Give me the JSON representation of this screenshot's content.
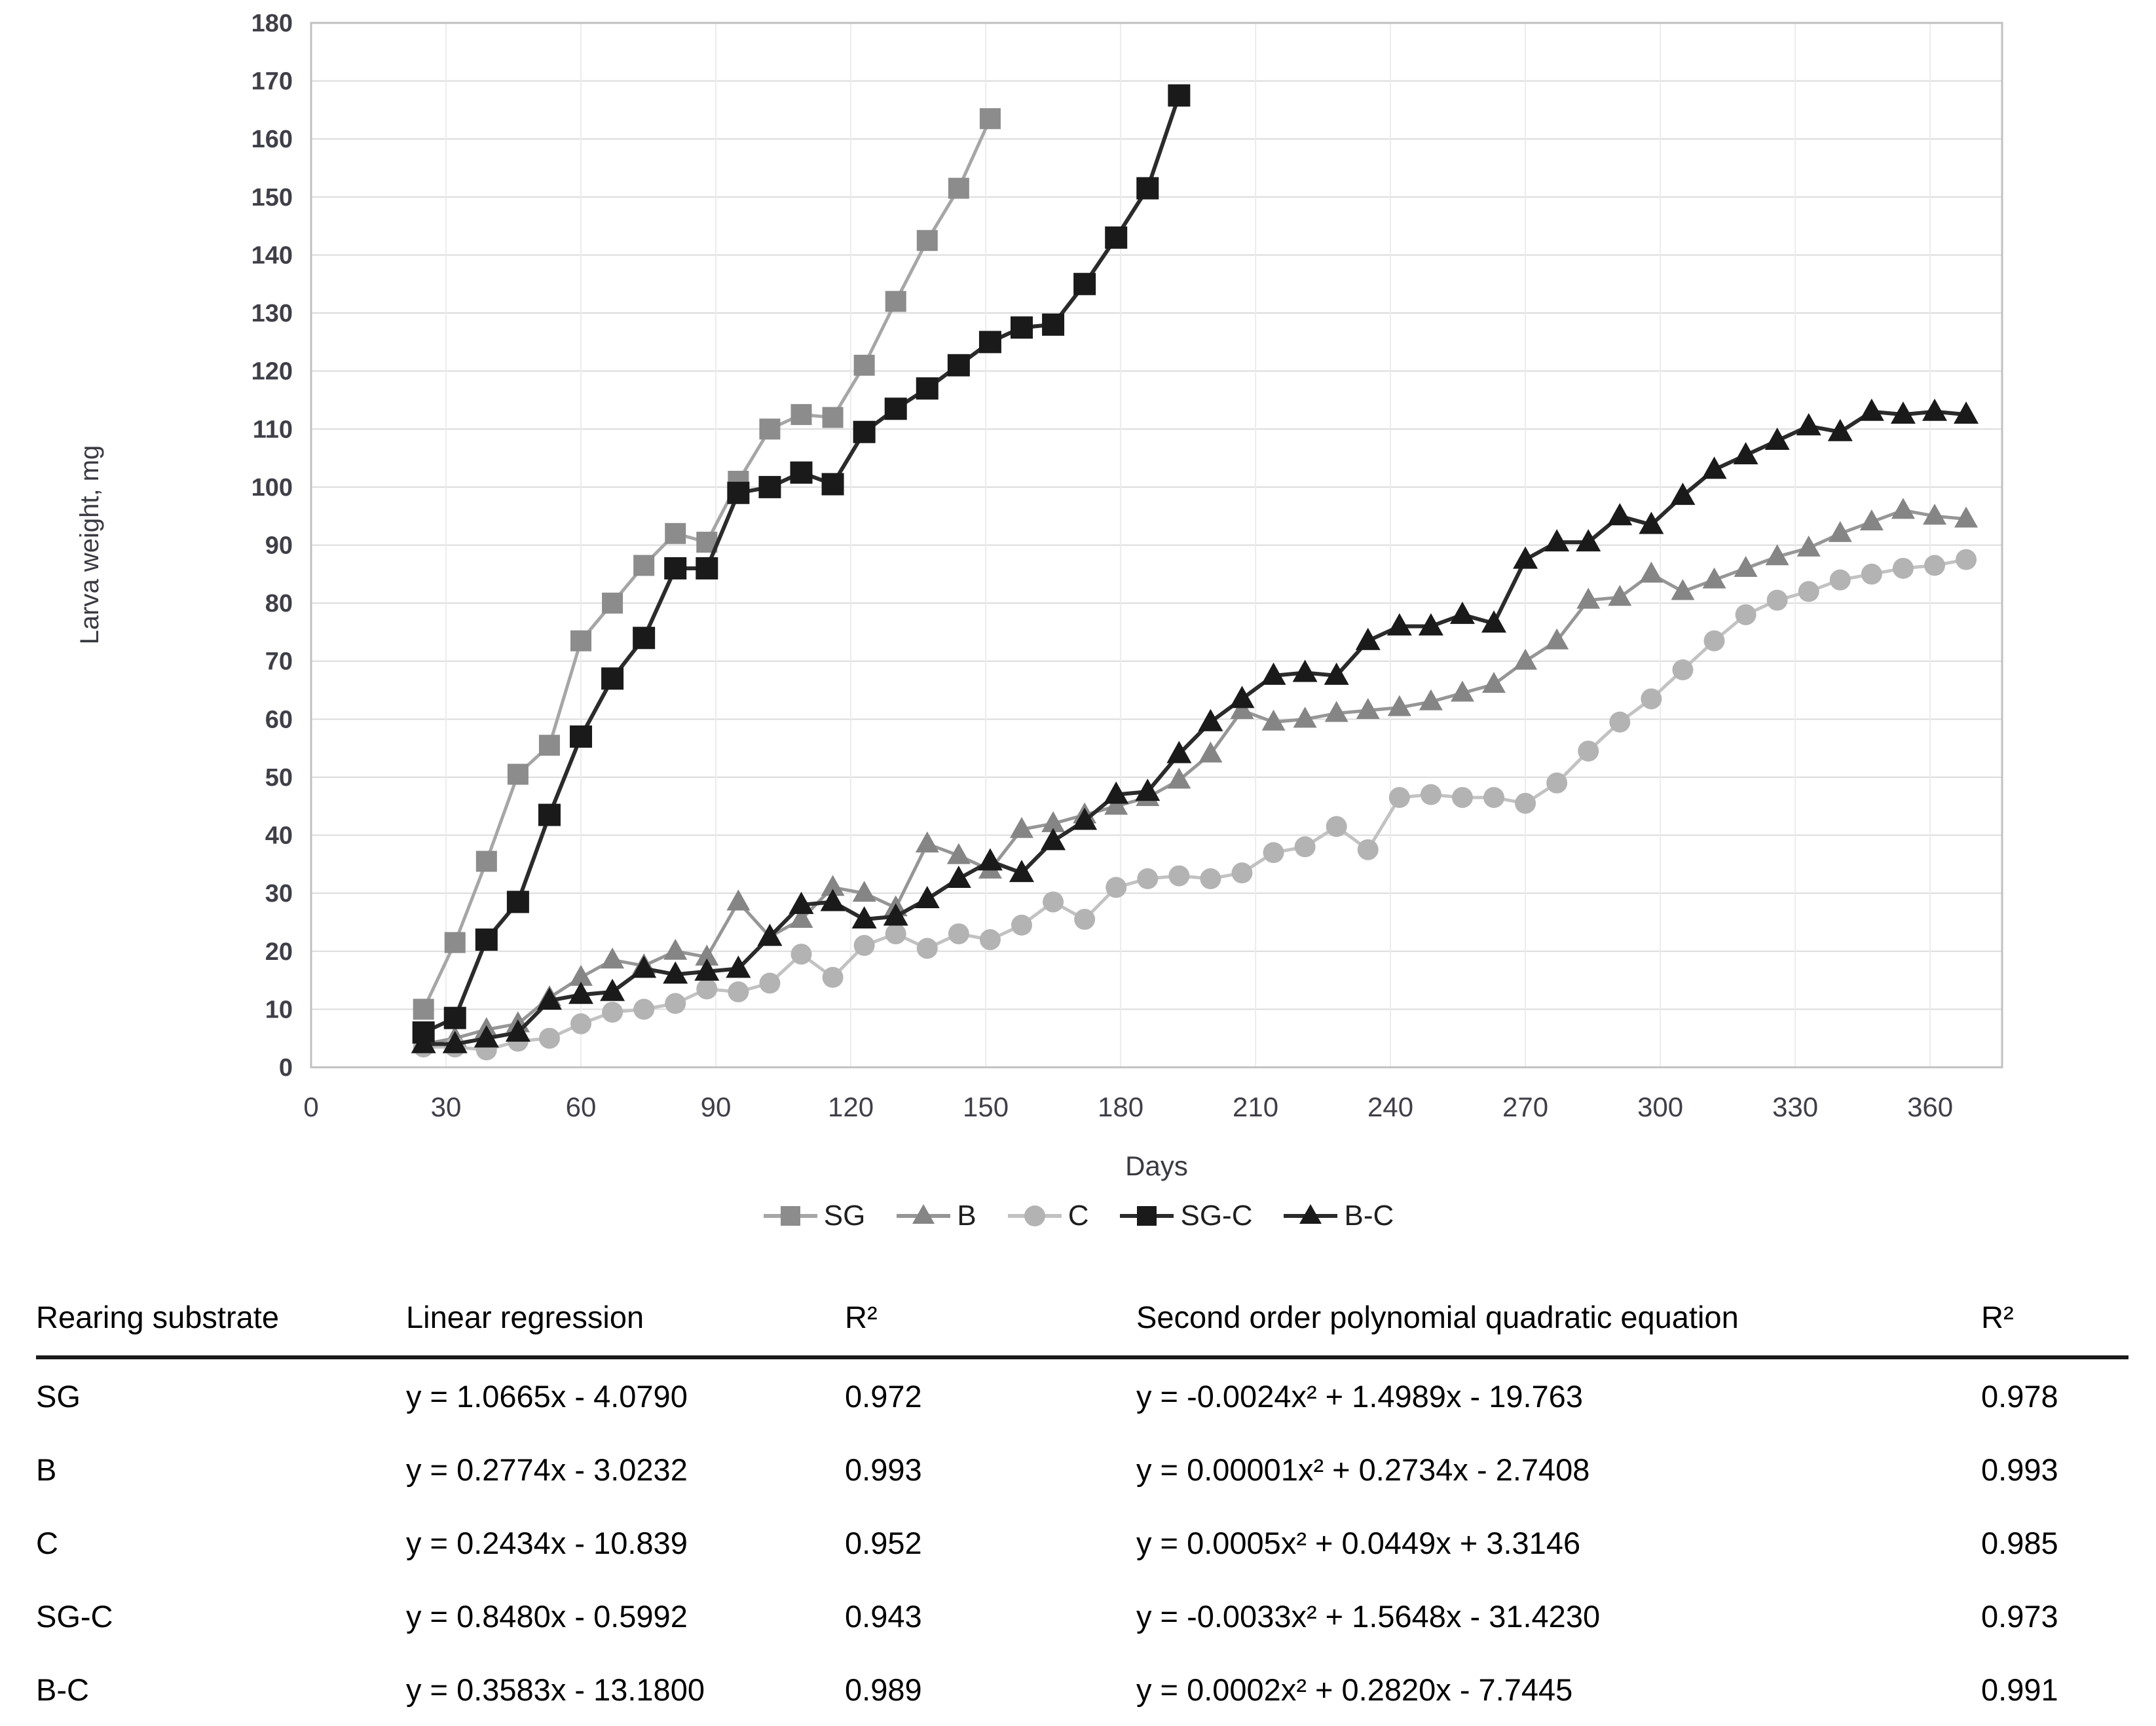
{
  "chart_data": {
    "type": "line",
    "title": "",
    "xlabel": "Days",
    "ylabel": "Larva weight, mg",
    "xlim": [
      0,
      376
    ],
    "ylim": [
      0,
      180
    ],
    "grid": true,
    "legend_position": "bottom",
    "x_ticks": [
      0,
      30,
      60,
      90,
      120,
      150,
      180,
      210,
      240,
      270,
      300,
      330,
      360
    ],
    "y_ticks": [
      0,
      10,
      20,
      30,
      40,
      50,
      60,
      70,
      80,
      90,
      100,
      110,
      120,
      130,
      140,
      150,
      160,
      170,
      180
    ],
    "x": [
      25,
      32,
      39,
      46,
      53,
      60,
      67,
      74,
      81,
      88,
      95,
      102,
      109,
      116,
      123,
      130,
      137,
      144,
      151,
      158,
      165,
      172,
      179,
      186,
      193,
      200,
      207,
      214,
      221,
      228,
      235,
      242,
      249,
      256,
      263,
      270,
      277,
      284,
      291,
      298,
      305,
      312,
      319,
      326,
      333,
      340,
      347,
      354,
      361,
      368
    ],
    "series": [
      {
        "name": "SG",
        "marker": "square",
        "marker_color": "#8c8c8c",
        "line_color": "#a6a6a6",
        "values": [
          10,
          21.5,
          35.5,
          50.5,
          55.5,
          73.5,
          80,
          86.5,
          92,
          90.5,
          101,
          110,
          112.5,
          112,
          121,
          132,
          142.5,
          151.5,
          163.5
        ]
      },
      {
        "name": "B",
        "marker": "triangle",
        "marker_color": "#858585",
        "line_color": "#969696",
        "values": [
          4,
          5,
          6.5,
          7.5,
          12,
          15.5,
          18.5,
          17.5,
          20,
          19,
          28.5,
          22.5,
          25.5,
          31,
          30,
          27.5,
          38.5,
          36.5,
          34,
          41,
          42,
          43.5,
          45,
          46.5,
          49.5,
          54,
          61.5,
          59.5,
          60,
          61,
          61.5,
          62,
          63,
          64.5,
          66,
          70,
          73.5,
          80.5,
          81,
          85,
          82,
          84,
          86,
          88,
          89.5,
          92,
          94,
          96,
          95,
          94.5
        ]
      },
      {
        "name": "C",
        "marker": "circle",
        "marker_color": "#b3b3b3",
        "line_color": "#c2c2c2",
        "values": [
          3.5,
          3.5,
          3,
          4.5,
          5,
          7.5,
          9.5,
          10,
          11,
          13.5,
          13,
          14.5,
          19.5,
          15.5,
          21,
          23,
          20.5,
          23,
          22,
          24.5,
          28.5,
          25.5,
          31,
          32.5,
          33,
          32.5,
          33.5,
          37,
          38,
          41.5,
          37.5,
          46.5,
          47,
          46.5,
          46.5,
          45.5,
          49,
          54.5,
          59.5,
          63.5,
          68.5,
          73.5,
          78,
          80.5,
          82,
          84,
          85,
          86,
          86.5,
          87.5
        ]
      },
      {
        "name": "SG-C",
        "marker": "square",
        "marker_color": "#1a1a1a",
        "line_color": "#2b2b2b",
        "values": [
          6,
          8.5,
          22,
          28.5,
          43.5,
          57,
          67,
          74,
          86,
          86,
          99,
          100,
          102.5,
          100.5,
          109.5,
          113.5,
          117,
          121,
          125,
          127.5,
          128,
          135,
          143,
          151.5,
          167.5
        ]
      },
      {
        "name": "B-C",
        "marker": "triangle",
        "marker_color": "#1a1a1a",
        "line_color": "#2b2b2b",
        "values": [
          4,
          4,
          5,
          6,
          11.5,
          12.5,
          13,
          17,
          16,
          16.5,
          17,
          22.5,
          28,
          28.5,
          25.5,
          26,
          29,
          32.5,
          35.5,
          33.5,
          39,
          42.5,
          47,
          47.5,
          54,
          59.5,
          63.5,
          67.5,
          68,
          67.5,
          73.5,
          76,
          76,
          78,
          76.5,
          87.5,
          90.5,
          90.5,
          95,
          93.5,
          98.5,
          103,
          105.5,
          108,
          110.5,
          109.5,
          113,
          112.5,
          113,
          112.5
        ]
      }
    ]
  },
  "table": {
    "headers": [
      "Rearing substrate",
      "Linear regression",
      "R²",
      "Second order polynomial quadratic equation",
      "R²"
    ],
    "rows": [
      [
        "SG",
        "y = 1.0665x - 4.0790",
        "0.972",
        "y = -0.0024x² + 1.4989x - 19.763",
        "0.978"
      ],
      [
        "B",
        "y = 0.2774x - 3.0232",
        "0.993",
        "y = 0.00001x² + 0.2734x - 2.7408",
        "0.993"
      ],
      [
        "C",
        "y = 0.2434x - 10.839",
        "0.952",
        "y = 0.0005x² + 0.0449x + 3.3146",
        "0.985"
      ],
      [
        "SG-C",
        "y = 0.8480x - 0.5992",
        "0.943",
        "y = -0.0033x² + 1.5648x - 31.4230",
        "0.973"
      ],
      [
        "B-C",
        "y = 0.3583x - 13.1800",
        "0.989",
        "y = 0.0002x² + 0.2820x - 7.7445",
        "0.991"
      ]
    ]
  },
  "colors": {
    "gridline": "#dbdbdb",
    "plot_border": "#c0c0c0",
    "tick_text": "#3f3f48",
    "table_text": "#000000"
  }
}
